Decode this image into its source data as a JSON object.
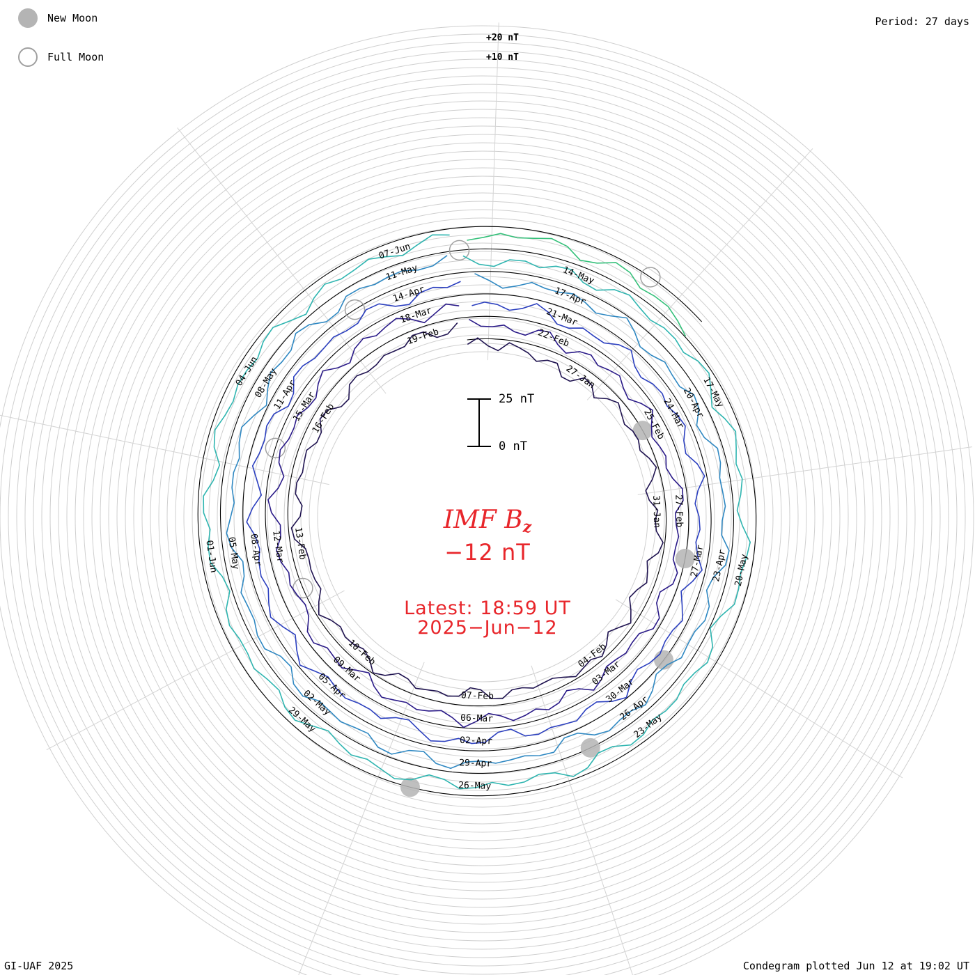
{
  "header": {
    "period": "Period: 27 days"
  },
  "legend": {
    "new_moon": "New Moon",
    "full_moon": "Full Moon"
  },
  "footer": {
    "credit": "GI-UAF 2025",
    "plotted": "Condegram plotted Jun 12 at 19:02 UT"
  },
  "center": {
    "parameter": "IMF B",
    "parameter_sub": "z",
    "current_value": "−12 nT",
    "latest_time": "Latest: 18:59 UT",
    "latest_date": "2025−Jun−12"
  },
  "scale_bar": {
    "top_label": "25 nT",
    "bottom_label": "0 nT"
  },
  "ring_ticks": {
    "plus20": "+20 nT",
    "plus10": "+10 nT"
  },
  "colors": {
    "rings": [
      "#1f1350",
      "#2a1a88",
      "#2b3fbf",
      "#2f88c2",
      "#2fb5b0",
      "#35c07a",
      "#7fc13a",
      "#b3b92c",
      "#c2901f",
      "#c2551a",
      "#c21d1d"
    ],
    "text_accent": "#e8262b",
    "moon_new": "#b4b4b4",
    "moon_full_edge": "#a0a0a0"
  },
  "chart_data": {
    "type": "line",
    "layout": "spiral condegram",
    "period_days": 27,
    "units": "nT",
    "start_date": "2025-Jan-24",
    "end_date": "2025-Jun-12",
    "date_labels": [
      "27-Jan",
      "31-Jan",
      "04-Feb",
      "07-Feb",
      "10-Feb",
      "13-Feb",
      "16-Feb",
      "19-Feb",
      "22-Feb",
      "25-Feb",
      "27-Feb",
      "03-Mar",
      "06-Mar",
      "09-Mar",
      "12-Mar",
      "15-Mar",
      "18-Mar",
      "21-Mar",
      "24-Mar",
      "27-Mar",
      "30-Mar",
      "02-Apr",
      "05-Apr",
      "08-Apr",
      "11-Apr",
      "14-Apr",
      "17-Apr",
      "20-Apr",
      "23-Apr",
      "26-Apr",
      "29-Apr",
      "02-May",
      "05-May",
      "08-May",
      "11-May",
      "14-May",
      "17-May",
      "20-May",
      "23-May",
      "26-May",
      "29-May",
      "01-Jun",
      "04-Jun",
      "07-Jun"
    ],
    "new_moon_dates": [
      "2025-Jan-29",
      "2025-Feb-28",
      "2025-Mar-29",
      "2025-Apr-27",
      "2025-May-27"
    ],
    "full_moon_dates": [
      "2025-Feb-12",
      "2025-Mar-14",
      "2025-Apr-13",
      "2025-May-12",
      "2025-Jun-11"
    ],
    "series": [
      {
        "values": [
          -3,
          -2,
          -4,
          -5,
          -3,
          -6,
          -4,
          -8,
          -9,
          -7,
          -10,
          -12,
          -8,
          -6,
          -9,
          -7,
          -5,
          -4,
          -6,
          -8,
          -7,
          -5,
          -3,
          -4,
          -6,
          -9,
          -11,
          -8,
          -6,
          -4,
          -3,
          -5,
          -7,
          -6,
          -8,
          -10,
          -9,
          -7,
          -5,
          -6,
          -8,
          -7,
          -4,
          -3,
          -2,
          -4,
          -6,
          -5,
          -7,
          -9,
          -8,
          -6,
          -5,
          -7,
          -9,
          -10,
          -8,
          -6,
          -4,
          -5,
          -7,
          -8,
          -6,
          -4,
          -3,
          -5,
          -7,
          -9,
          -8,
          -6,
          -5,
          -4,
          -6,
          -8,
          -10,
          -12,
          -9,
          -7,
          -5,
          -4,
          -6,
          -8,
          -7,
          -5,
          -4,
          -6,
          -8,
          -9,
          -7,
          -6,
          -8,
          -10,
          -11,
          -9,
          -7,
          -6,
          -8,
          -9,
          -7,
          -5,
          -4,
          -6,
          -8,
          -7,
          -5,
          -3,
          -4,
          -6,
          -8,
          -9,
          -7,
          -5,
          -6,
          -8,
          -10,
          -9,
          -7,
          -6,
          -5,
          -7,
          -9,
          -8,
          -6,
          -5,
          -7,
          -9,
          -11,
          -10,
          -8,
          -6,
          -5,
          -4,
          -6,
          -8,
          -9,
          -7,
          -5,
          -4,
          -6,
          -8,
          -7,
          -5,
          -4,
          -6,
          -8,
          -10,
          -9,
          -7,
          -6,
          -5,
          -7,
          -9,
          -8,
          -6,
          -5,
          -4,
          -6,
          -8,
          -7,
          -5,
          -3,
          -5,
          -7,
          -9,
          -8,
          -6,
          -5,
          -7,
          -9,
          -11,
          -10,
          -8,
          -6,
          -5,
          -4,
          -6,
          -8,
          -10,
          -12,
          -9,
          -7,
          -6,
          -8,
          -9,
          -7,
          -5,
          -4,
          -6,
          -8,
          -7,
          -5,
          -4,
          -6,
          -8,
          -9,
          -7,
          -6,
          -5,
          -7,
          -9,
          -8,
          -6,
          -5,
          -4,
          -6,
          -8,
          -10,
          -9,
          -7,
          -6,
          -5,
          -7,
          -9,
          -8,
          -6,
          -5,
          -7,
          -9,
          -11,
          -10,
          -8,
          -6,
          -5,
          -4,
          -6,
          -8,
          -9,
          -7,
          -5,
          -4,
          -6,
          -8,
          -7,
          -5,
          -4,
          -6,
          -8,
          -10,
          -9,
          -7,
          -6,
          -5,
          -7,
          -9,
          -8,
          -6,
          -5,
          -4,
          -6,
          -8,
          -7,
          -5,
          -3,
          -5,
          -7,
          -9,
          -8,
          -6,
          -5,
          -7,
          -9,
          -11,
          -10,
          -8,
          -6,
          -5,
          -4,
          -6,
          -8,
          -10,
          -12,
          -9,
          -7,
          -6,
          -8,
          -9,
          -7,
          -5,
          -4,
          -6,
          -8,
          -7,
          -5,
          -4,
          -6,
          -8,
          -9,
          -7,
          -6,
          -5,
          -7,
          -9,
          -8,
          -6,
          -5,
          -4,
          -6,
          -8,
          -10,
          -9,
          -7,
          -6,
          -5,
          -7,
          -9,
          -8,
          -6,
          -5,
          -7,
          -9,
          -11,
          -10,
          -8,
          -6,
          -5,
          -4,
          -6,
          -8,
          -9,
          -7,
          -5,
          -4,
          -6,
          -8,
          -7,
          -5,
          -4,
          -6,
          -8,
          -10,
          -9,
          -7,
          -6,
          -5,
          -7,
          -9,
          -8,
          -6,
          -5,
          -4,
          -6,
          -8,
          -7,
          -5,
          -3,
          -5,
          -7,
          -9,
          -8,
          -6,
          -5,
          -7,
          -9,
          -11,
          -10,
          -8,
          -6,
          -5,
          -4,
          -6,
          -8,
          -10,
          -12,
          -9,
          -7,
          -6,
          -8,
          -9,
          -7,
          -5,
          -4,
          -6,
          -8,
          -7,
          -5,
          -4,
          -6,
          -8,
          -9,
          -7,
          -6,
          -5,
          -7,
          -9,
          -8,
          -6,
          -5,
          -4,
          -6,
          -8,
          -10,
          -9,
          -7,
          -6,
          -5,
          -7,
          -9,
          -8,
          -6,
          -5,
          -7,
          -9,
          -11,
          -10,
          -8,
          -6,
          -5,
          -4,
          -6,
          -8,
          -9,
          -7,
          -5,
          -4,
          -6,
          -8,
          -7,
          -5,
          -4,
          -6,
          -8,
          -10,
          -9,
          -7,
          -6,
          -5,
          -7,
          -9,
          -8,
          -6,
          -5,
          -4,
          -6,
          -8,
          -7,
          -5,
          -3,
          -5,
          -7,
          -9,
          -8,
          -6,
          -5,
          -7,
          -9,
          -11,
          -10,
          -8,
          -6,
          -5,
          -4,
          -6,
          -8,
          -10,
          -12,
          -9,
          -7,
          -6,
          -8,
          -9,
          -7,
          -5,
          -4,
          -6,
          -8,
          -7,
          -5,
          -4,
          -6,
          -8,
          -9,
          -7,
          -6,
          -5,
          -7,
          -9,
          -8,
          -6,
          -5,
          -4,
          -6,
          -8,
          -10,
          -9,
          -7,
          -6,
          -5,
          -7,
          -9,
          -8,
          -6,
          -5,
          -7,
          -9,
          -11,
          -10,
          -8,
          -6,
          -5,
          -4,
          -6,
          -8,
          -9,
          -7,
          -5,
          -4,
          -6,
          -8,
          -7,
          -5,
          -4,
          -6,
          -8,
          -10,
          -9,
          -7,
          -6,
          -5,
          -7,
          -9,
          -8,
          -6,
          -5,
          -4,
          -6,
          -8,
          -7,
          -5,
          -3,
          -5,
          -7,
          -9,
          -8,
          -6,
          -5,
          -7,
          -9,
          -11,
          -10,
          -12
        ]
      }
    ]
  }
}
